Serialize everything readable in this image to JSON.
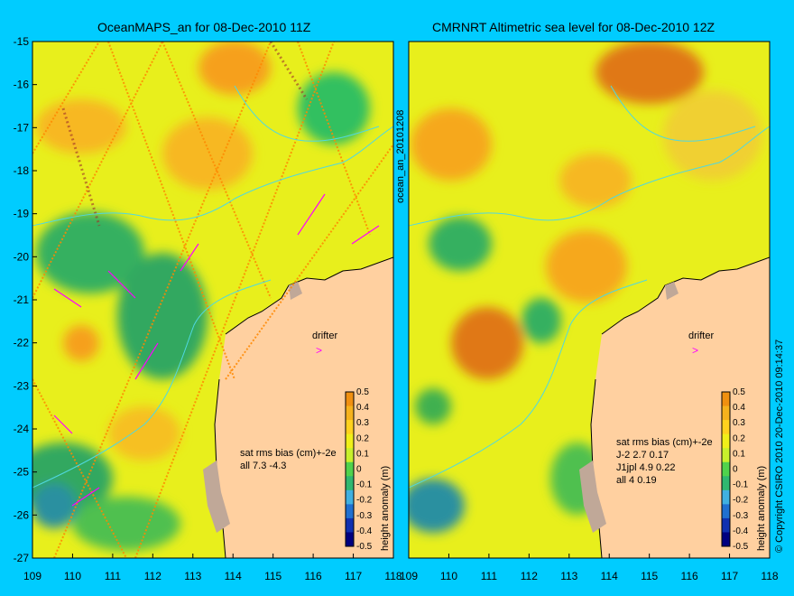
{
  "left_panel": {
    "title": "OceanMAPS_an for 08-Dec-2010 11Z",
    "side_label": "ocean_an_20101208",
    "x_ticks": [
      "109",
      "110",
      "111",
      "112",
      "113",
      "114",
      "115",
      "116",
      "117",
      "118"
    ],
    "y_ticks": [
      "-15",
      "-16",
      "-17",
      "-18",
      "-19",
      "-20",
      "-21",
      "-22",
      "-23",
      "-24",
      "-25",
      "-26",
      "-27"
    ],
    "stats_header": "sat rms bias (cm)+-2e",
    "stats_lines": [
      "all 7.3 -4.3"
    ],
    "drifter_label": "drifter"
  },
  "right_panel": {
    "title": "CMRNRT Altimetric sea level  for 08-Dec-2010 12Z",
    "x_ticks": [
      "109",
      "110",
      "111",
      "112",
      "113",
      "114",
      "115",
      "116",
      "117",
      "118"
    ],
    "stats_header": "sat rms bias (cm)+-2e",
    "stats_lines": [
      "J-2    2.7 0.17",
      "J1jpl  4.9 0.22",
      "all 4  0.19"
    ],
    "drifter_label": "drifter"
  },
  "colorbar": {
    "label": "height anomaly (m)",
    "ticks": [
      "0.5",
      "0.4",
      "0.3",
      "0.2",
      "0.1",
      "0",
      "-0.1",
      "-0.2",
      "-0.3",
      "-0.4",
      "-0.5"
    ],
    "colors": [
      "#f09010",
      "#f6b21c",
      "#ffd21e",
      "#f0ef19",
      "#c8f02c",
      "#50d24c",
      "#30b870",
      "#40b0e0",
      "#2070d0",
      "#1030b0",
      "#000080"
    ]
  },
  "copyright": "© Copyright CSIRO 2010   20-Dec-2010 09:14:37",
  "colors": {
    "background": "#00ccff",
    "land": "#ffd0a0",
    "shelf": "#c0a898",
    "track_magenta": "#ff00ff"
  }
}
